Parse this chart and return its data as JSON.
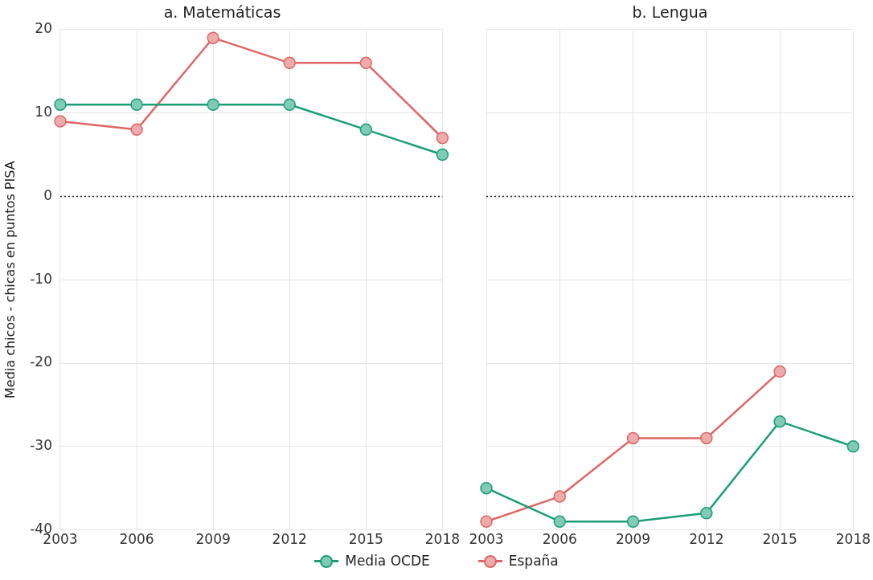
{
  "chart_data": [
    {
      "type": "line",
      "title": "a. Matemáticas",
      "ylabel": "Media chicos - chicas en puntos PISA",
      "x": [
        2003,
        2006,
        2009,
        2012,
        2015,
        2018
      ],
      "series": [
        {
          "name": "Media OCDE",
          "color": "#1a9e77",
          "values": [
            11,
            11,
            11,
            11,
            8,
            5
          ]
        },
        {
          "name": "España",
          "color": "#e06666",
          "values": [
            9,
            8,
            19,
            16,
            16,
            7
          ]
        }
      ],
      "xlim": [
        2003,
        2018
      ],
      "xticks": [
        2003,
        2006,
        2009,
        2012,
        2015,
        2018
      ],
      "ylim": [
        -40,
        20
      ],
      "yticks": [
        -40,
        -30,
        -20,
        -10,
        0,
        10,
        20
      ],
      "ref_lines": [
        {
          "axis": "y",
          "value": 0,
          "line_style": "dotted",
          "color": "#222222"
        }
      ],
      "grid": true,
      "legend": "bottom",
      "marker": "circle"
    },
    {
      "type": "line",
      "title": "b. Lengua",
      "x": [
        2003,
        2006,
        2009,
        2012,
        2015,
        2018
      ],
      "series": [
        {
          "color": "#1a9e77",
          "values": [
            -35,
            -39,
            -39,
            -38,
            -27,
            -30
          ]
        },
        {
          "color": "#e06666",
          "values": [
            -39,
            -36,
            -29,
            -29,
            -21,
            null
          ]
        }
      ],
      "xlim": [
        2003,
        2018
      ],
      "xticks": [
        2003,
        2006,
        2009,
        2012,
        2015,
        2018
      ],
      "ylim": [
        -40,
        20
      ],
      "yticks": [
        -40,
        -30,
        -20,
        -10,
        0,
        10,
        20
      ],
      "ref_lines": [
        {
          "axis": "y",
          "value": 0,
          "line_style": "dotted",
          "color": "#222222"
        }
      ],
      "grid": true,
      "tick_labels": "x",
      "marker": "circle"
    }
  ]
}
